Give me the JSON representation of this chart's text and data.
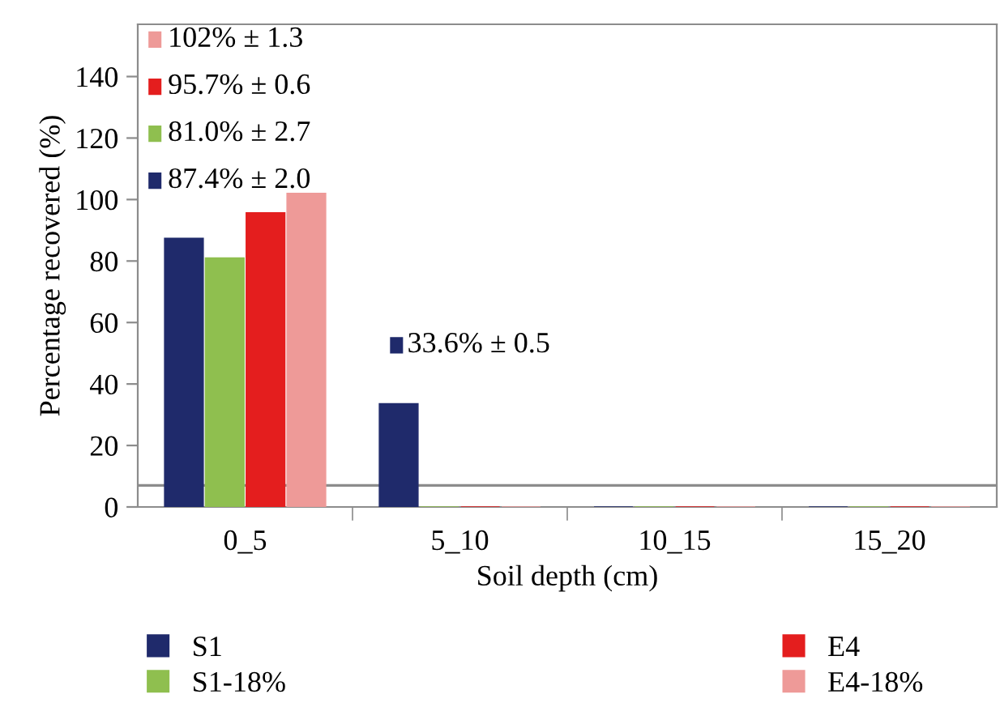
{
  "chart_data": {
    "type": "bar",
    "xlabel": "Soil depth (cm)",
    "ylabel": "Percentage recovered (%)",
    "categories": [
      "0_5",
      "5_10",
      "10_15",
      "15_20"
    ],
    "series": [
      {
        "name": "S1",
        "color": "#1f2a6b",
        "values": [
          87.4,
          33.6,
          0,
          0
        ]
      },
      {
        "name": "S1-18%",
        "color": "#8fbf4f",
        "values": [
          81.0,
          0,
          0,
          0
        ]
      },
      {
        "name": "E4",
        "color": "#e41e1e",
        "values": [
          95.7,
          0,
          0,
          0
        ]
      },
      {
        "name": "E4-18%",
        "color": "#ee9a98",
        "values": [
          102,
          0,
          0,
          0
        ]
      }
    ],
    "annotations": [
      "102% ± 1.3",
      "95.7% ± 0.6",
      "81.0% ± 2.7",
      "87.4% ± 2.0",
      "33.6% ± 0.5"
    ],
    "ylim": [
      0,
      157
    ],
    "yticks": [
      0,
      20,
      40,
      60,
      80,
      100,
      120,
      140
    ],
    "ref_lines": [
      {
        "axis": "y",
        "value": 7,
        "color": "#8c8c8c"
      }
    ],
    "grid": false,
    "legend": "bottom"
  }
}
